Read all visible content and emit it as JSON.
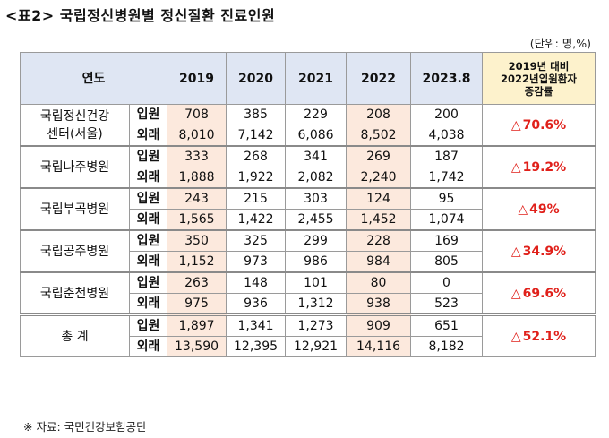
{
  "title": "<표2> 국립정신병원별 정신질환 진료인원",
  "unit": "(단위: 명,%)",
  "headers": {
    "category": "연도",
    "years": [
      "2019",
      "2020",
      "2021",
      "2022",
      "2023.8"
    ],
    "change": "2019년 대비 2022년입원환자 증감률"
  },
  "change_header_lines": [
    "2019년 대비",
    "2022년입원환자",
    "증감률"
  ],
  "triangle": "△",
  "rows": [
    {
      "name_lines": [
        "국립정신건강",
        "센터(서울)"
      ],
      "inpatient_label": "입원",
      "outpatient_label": "외래",
      "inpatient": [
        "708",
        "385",
        "229",
        "208",
        "200"
      ],
      "outpatient": [
        "8,010",
        "7,142",
        "6,086",
        "8,502",
        "4,038"
      ],
      "change": "70.6%"
    },
    {
      "name_lines": [
        "국립나주병원"
      ],
      "inpatient_label": "입원",
      "outpatient_label": "외래",
      "inpatient": [
        "333",
        "268",
        "341",
        "269",
        "187"
      ],
      "outpatient": [
        "1,888",
        "1,922",
        "2,082",
        "2,240",
        "1,742"
      ],
      "change": "19.2%"
    },
    {
      "name_lines": [
        "국립부곡병원"
      ],
      "inpatient_label": "입원",
      "outpatient_label": "외래",
      "inpatient": [
        "243",
        "215",
        "303",
        "124",
        "95"
      ],
      "outpatient": [
        "1,565",
        "1,422",
        "2,455",
        "1,452",
        "1,074"
      ],
      "change": "49%"
    },
    {
      "name_lines": [
        "국립공주병원"
      ],
      "inpatient_label": "입원",
      "outpatient_label": "외래",
      "inpatient": [
        "350",
        "325",
        "299",
        "228",
        "169"
      ],
      "outpatient": [
        "1,152",
        "973",
        "986",
        "984",
        "805"
      ],
      "change": "34.9%"
    },
    {
      "name_lines": [
        "국립춘천병원"
      ],
      "inpatient_label": "입원",
      "outpatient_label": "외래",
      "inpatient": [
        "263",
        "148",
        "101",
        "80",
        "0"
      ],
      "outpatient": [
        "975",
        "936",
        "1,312",
        "938",
        "523"
      ],
      "change": "69.6%"
    },
    {
      "name_lines": [
        "총 계"
      ],
      "inpatient_label": "입원",
      "outpatient_label": "외래",
      "inpatient": [
        "1,897",
        "1,341",
        "1,273",
        "909",
        "651"
      ],
      "outpatient": [
        "13,590",
        "12,395",
        "12,921",
        "14,116",
        "8,182"
      ],
      "change": "52.1%"
    }
  ],
  "source": "※ 자료: 국민건강보험공단",
  "colors": {
    "header_bg": "#dfe6f3",
    "change_header_bg": "#fdf2cc",
    "highlight_bg": "#fce9dd",
    "change_text": "#e0201a"
  }
}
